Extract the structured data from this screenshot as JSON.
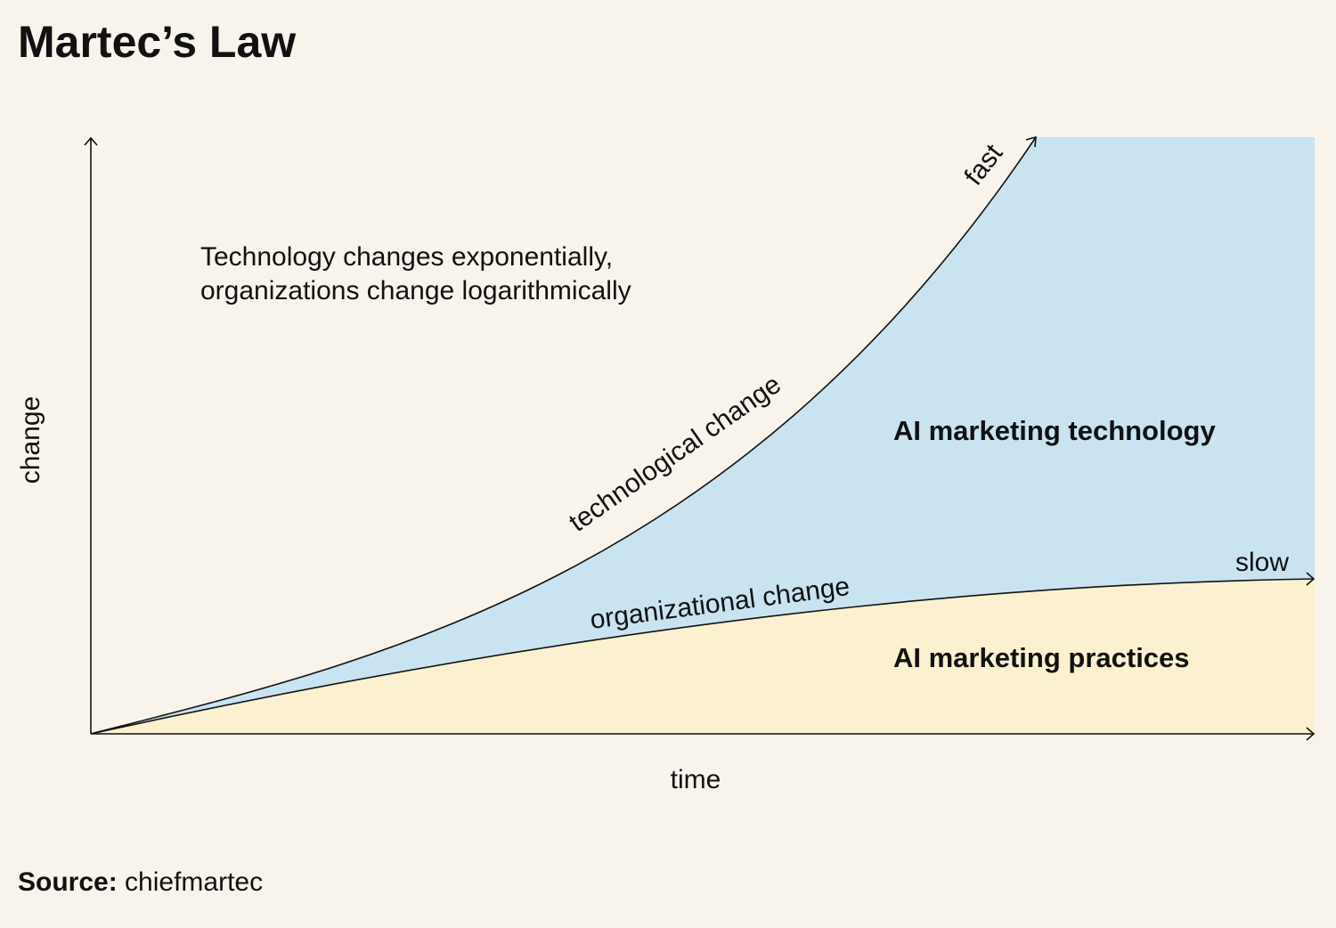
{
  "title": "Martec’s Law",
  "subtitle_line1": "Technology changes exponentially,",
  "subtitle_line2": "organizations change logarithmically",
  "axes": {
    "x_label": "time",
    "y_label": "change"
  },
  "curves": {
    "technology": {
      "label": "technological change",
      "end_label": "fast"
    },
    "organization": {
      "label": "organizational change",
      "end_label": "slow"
    }
  },
  "regions": {
    "technology": {
      "label": "AI marketing technology",
      "color": "#c9e3f1"
    },
    "practices": {
      "label": "AI marketing practices",
      "color": "#fbf0cf"
    }
  },
  "source": {
    "prefix": "Source:",
    "name": "chiefmartec"
  },
  "colors": {
    "background": "#f8f4ec",
    "ink": "#111111"
  }
}
